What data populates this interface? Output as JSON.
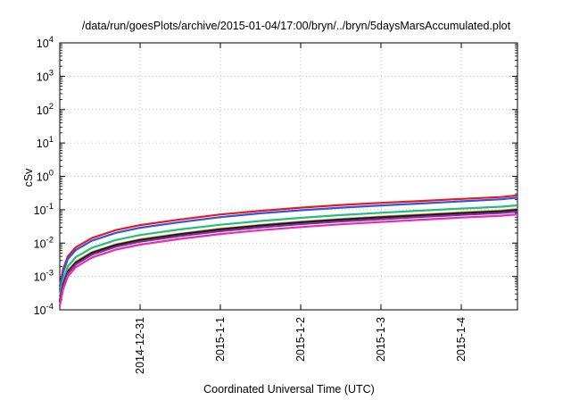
{
  "chart_data": {
    "type": "line",
    "title": "/data/run/goesPlots/archive/2015-01-04/17:00/bryn/../bryn/5daysMarsAccumulated.plot",
    "xlabel": "Coordinated Universal Time (UTC)",
    "ylabel": "cSv",
    "yscale": "log",
    "ylim": [
      "1e-4",
      "1e4"
    ],
    "xlim": [
      "2014-12-30",
      "2015-01-04 17:00"
    ],
    "grid": true,
    "y_ticks": [
      {
        "base": "10",
        "exp": "-4",
        "value": -4
      },
      {
        "base": "10",
        "exp": "-3",
        "value": -3
      },
      {
        "base": "10",
        "exp": "-2",
        "value": -2
      },
      {
        "base": "10",
        "exp": "-1",
        "value": -1
      },
      {
        "base": "10",
        "exp": "0",
        "value": 0
      },
      {
        "base": "10",
        "exp": "1",
        "value": 1
      },
      {
        "base": "10",
        "exp": "2",
        "value": 2
      },
      {
        "base": "10",
        "exp": "3",
        "value": 3
      },
      {
        "base": "10",
        "exp": "4",
        "value": 4
      }
    ],
    "x_ticks": [
      {
        "label": "2014-12-31",
        "day": 1
      },
      {
        "label": "2015-1-1",
        "day": 2
      },
      {
        "label": "2015-1-2",
        "day": 3
      },
      {
        "label": "2015-1-3",
        "day": 4
      },
      {
        "label": "2015-1-4",
        "day": 5
      }
    ],
    "x": [
      0.0,
      0.04,
      0.1,
      0.2,
      0.4,
      0.7,
      1.0,
      1.5,
      2.0,
      2.5,
      3.0,
      3.5,
      4.0,
      4.5,
      5.0,
      5.5,
      5.7
    ],
    "series": [
      {
        "color": "#e8191c",
        "values": [
          0.0005,
          0.0016,
          0.004,
          0.0075,
          0.0142,
          0.0245,
          0.0345,
          0.051,
          0.072,
          0.093,
          0.115,
          0.138,
          0.16,
          0.183,
          0.21,
          0.24,
          0.27
        ]
      },
      {
        "color": "#2a57e3",
        "values": [
          0.0004,
          0.0013,
          0.0033,
          0.0062,
          0.0118,
          0.0203,
          0.0287,
          0.0425,
          0.06,
          0.078,
          0.096,
          0.115,
          0.134,
          0.154,
          0.178,
          0.205,
          0.23
        ]
      },
      {
        "color": "#1fbf84",
        "values": [
          0.00025,
          0.0008,
          0.002,
          0.0038,
          0.0072,
          0.0124,
          0.0175,
          0.0258,
          0.0355,
          0.046,
          0.057,
          0.069,
          0.081,
          0.094,
          0.108,
          0.123,
          0.135
        ]
      },
      {
        "color": "#e5a021",
        "values": [
          0.00019,
          0.0006,
          0.0015,
          0.0028,
          0.0054,
          0.0092,
          0.0131,
          0.0193,
          0.027,
          0.035,
          0.044,
          0.053,
          0.062,
          0.072,
          0.083,
          0.095,
          0.105
        ]
      },
      {
        "color": "#1a1a1a",
        "values": [
          0.00018,
          0.00057,
          0.0014,
          0.0026,
          0.0051,
          0.0088,
          0.0124,
          0.0184,
          0.0258,
          0.0335,
          0.042,
          0.0505,
          0.059,
          0.068,
          0.079,
          0.09,
          0.099
        ]
      },
      {
        "color": "#7a2fa8",
        "values": [
          0.00016,
          0.0005,
          0.00125,
          0.0023,
          0.0045,
          0.0078,
          0.011,
          0.0163,
          0.0228,
          0.0297,
          0.037,
          0.0446,
          0.052,
          0.061,
          0.07,
          0.08,
          0.088
        ]
      },
      {
        "color": "#ee2ca8",
        "values": [
          0.00013,
          0.0004,
          0.001,
          0.0019,
          0.0037,
          0.0064,
          0.009,
          0.0134,
          0.0187,
          0.0243,
          0.0303,
          0.0365,
          0.043,
          0.05,
          0.058,
          0.066,
          0.073
        ]
      }
    ]
  }
}
